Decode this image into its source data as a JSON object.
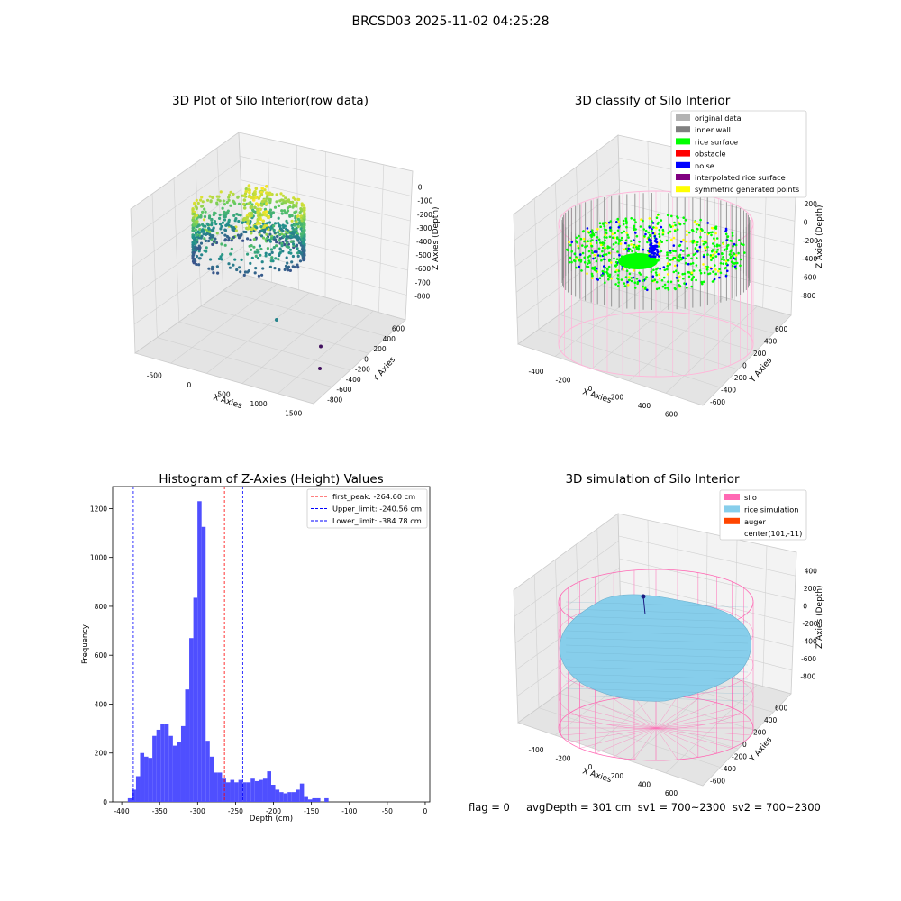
{
  "figure": {
    "suptitle": "BRCSD03 2025-11-02 04:25:28",
    "status_text": "flag = 0     avgDepth = 301 cm  sv1 = 700~2300  sv2 = 700~2300"
  },
  "colors": {
    "wall": "#d8d8d8",
    "pane": "#f2f2f2",
    "hist_bar": "#4f4fff",
    "silo_pink": "#ff69b4",
    "rice_sim": "#87ceeb",
    "auger": "#ff4500",
    "original": "#b3b3b3",
    "inner_wall": "#808080",
    "rice_surface": "#00ff00",
    "obstacle": "#ff0000",
    "noise": "#0000ff",
    "interp": "#800080",
    "symmetric": "#ffff00"
  },
  "chart_data": [
    {
      "type": "scatter",
      "projection": "3d",
      "title": "3D Plot of Silo Interior(row data)",
      "xlabel": "X Axies",
      "ylabel": "Y Axies",
      "zlabel": "Z Axies (Depth)",
      "xticks": [
        "-500",
        "0",
        "500",
        "1000",
        "1500"
      ],
      "yticks": [
        "600",
        "400",
        "200",
        "0",
        "-200",
        "-400",
        "-600",
        "-800"
      ],
      "zticks": [
        "0",
        "-100",
        "-200",
        "-300",
        "-400",
        "-500",
        "-600",
        "-700",
        "-800"
      ],
      "colormap": "viridis",
      "outliers": [
        {
          "x": 1050,
          "y": -250,
          "z": -180
        },
        {
          "x": 1500,
          "y": -500,
          "z": -300
        },
        {
          "x": 1450,
          "y": -750,
          "z": -320
        }
      ]
    },
    {
      "type": "scatter",
      "projection": "3d",
      "title": "3D classify of Silo Interior",
      "xlabel": "X Axies",
      "ylabel": "Y Axies",
      "zlabel": "Z Axies (Depth)",
      "xticks": [
        "-400",
        "-200",
        "0",
        "200",
        "400",
        "600"
      ],
      "yticks": [
        "600",
        "400",
        "200",
        "0",
        "-200",
        "-400",
        "-600"
      ],
      "zticks": [
        "200",
        "0",
        "-200",
        "-400",
        "-600",
        "-800"
      ],
      "legend": [
        {
          "label": "original data",
          "color": "#b3b3b3"
        },
        {
          "label": "inner wall",
          "color": "#808080"
        },
        {
          "label": "rice surface",
          "color": "#00ff00"
        },
        {
          "label": "obstacle",
          "color": "#ff0000"
        },
        {
          "label": "noise",
          "color": "#0000ff"
        },
        {
          "label": "interpolated rice surface",
          "color": "#800080"
        },
        {
          "label": "symmetric generated points",
          "color": "#ffff00"
        }
      ],
      "legend_position": "upper right"
    },
    {
      "type": "bar",
      "title": "Histogram of Z-Axies (Height) Values",
      "xlabel": "Depth (cm)",
      "ylabel": "Frequency",
      "xlim": [
        -412,
        6
      ],
      "ylim": [
        0,
        1290
      ],
      "xticks": [
        -400,
        -350,
        -300,
        -250,
        -200,
        -150,
        -100,
        -50,
        0
      ],
      "yticks": [
        0,
        200,
        400,
        600,
        800,
        1000,
        1200
      ],
      "bin_start": -392,
      "bin_width": 5.4,
      "values": [
        15,
        50,
        105,
        200,
        185,
        180,
        270,
        295,
        320,
        320,
        270,
        230,
        245,
        310,
        460,
        670,
        835,
        1230,
        1125,
        250,
        185,
        120,
        120,
        95,
        80,
        90,
        80,
        90,
        80,
        80,
        95,
        85,
        90,
        95,
        125,
        70,
        50,
        40,
        35,
        40,
        40,
        50,
        75,
        20,
        10,
        15,
        15,
        0,
        15,
        0,
        0
      ],
      "lines": [
        {
          "label": "first_peak: -264.60 cm",
          "x": -264.6,
          "color": "#ff0000"
        },
        {
          "label": "Upper_limit: -240.56 cm",
          "x": -240.56,
          "color": "#0000ff"
        },
        {
          "label": "Lower_limit: -384.78 cm",
          "x": -384.78,
          "color": "#0000ff"
        }
      ],
      "legend_position": "upper right"
    },
    {
      "type": "surface",
      "projection": "3d",
      "title": "3D simulation of Silo Interior",
      "xlabel": "X Axies",
      "ylabel": "Y Axies",
      "zlabel": "Z Axies (Depth)",
      "xticks": [
        "-400",
        "-200",
        "0",
        "200",
        "400",
        "600"
      ],
      "yticks": [
        "600",
        "400",
        "200",
        "0",
        "-200",
        "-400",
        "-600"
      ],
      "zticks": [
        "400",
        "200",
        "0",
        "-200",
        "-400",
        "-600",
        "-800"
      ],
      "legend": [
        {
          "label": "silo",
          "color": "#ff69b4"
        },
        {
          "label": "rice simulation",
          "color": "#87ceeb"
        },
        {
          "label": "auger",
          "color": "#ff4500"
        },
        {
          "label": "center(101,-11)",
          "color": ""
        }
      ],
      "legend_position": "upper right"
    }
  ]
}
